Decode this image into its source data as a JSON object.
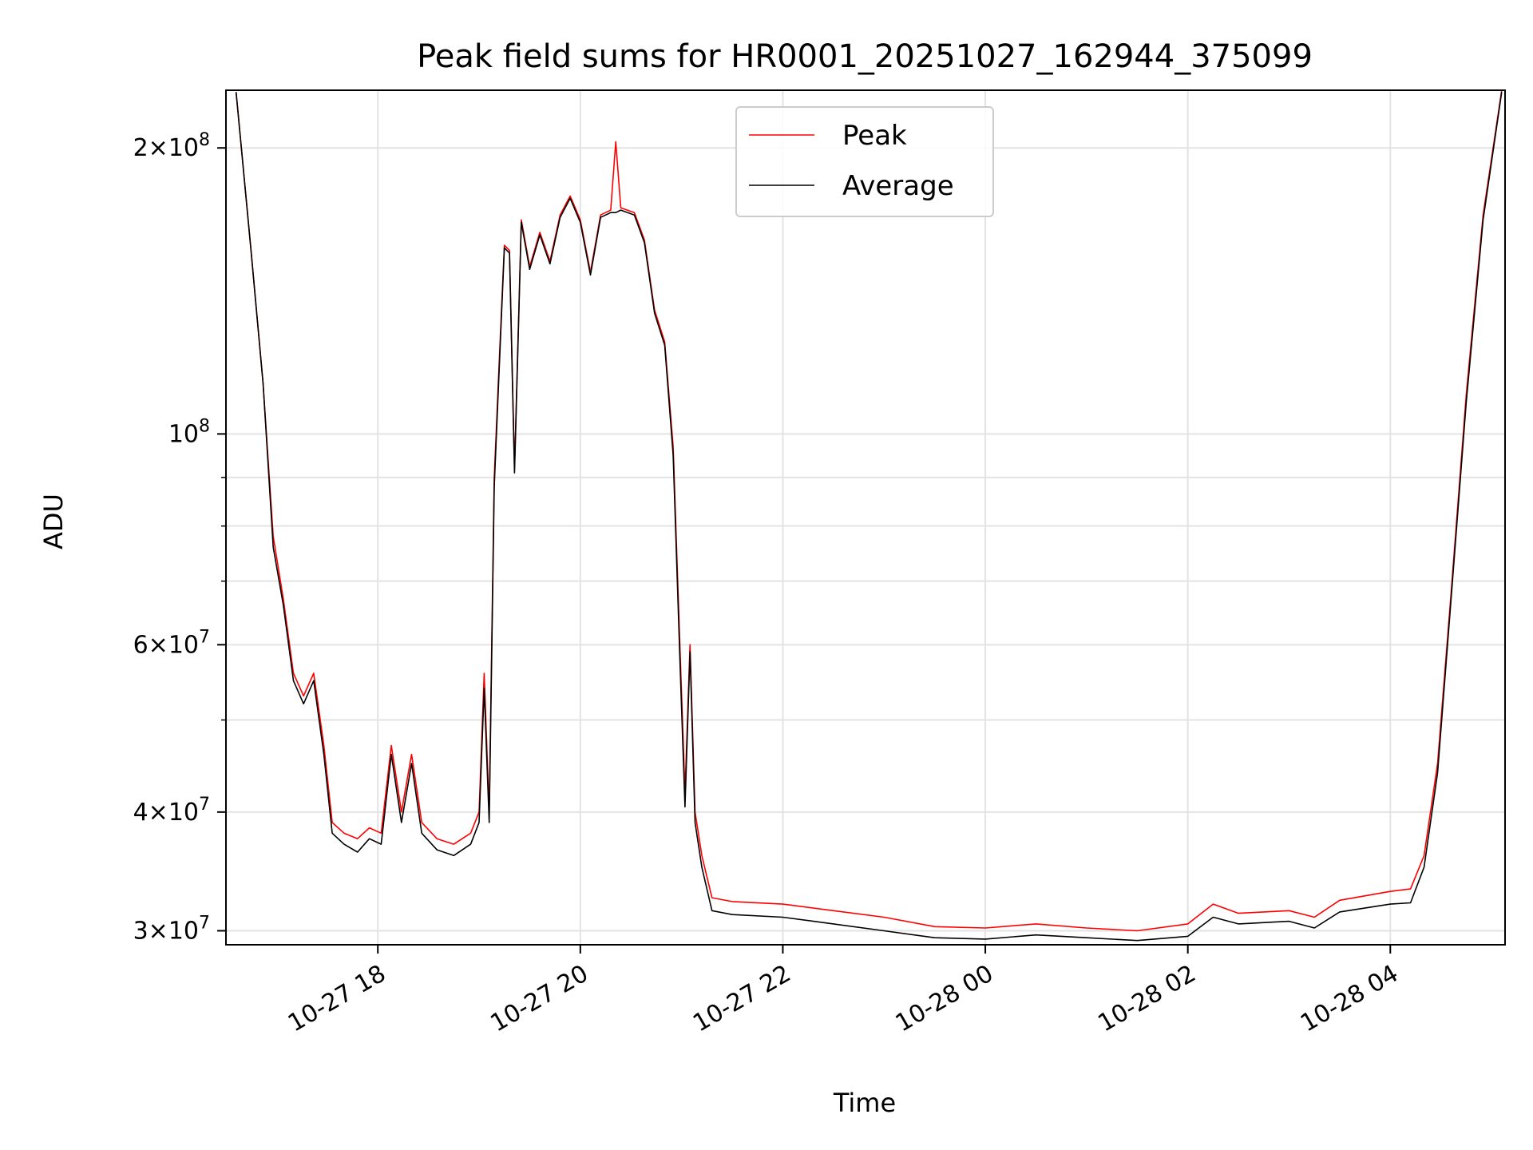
{
  "chart_data": {
    "type": "line",
    "title": "Peak field sums for HR0001_20251027_162944_375099",
    "xlabel": "Time",
    "ylabel": "ADU",
    "yscale": "log",
    "ylim": [
      29000000,
      230000000
    ],
    "xlim": [
      "2025-10-27 16:30",
      "2025-10-28 05:08"
    ],
    "x_ticks": [
      {
        "value": "2025-10-27 18:00",
        "label": "10-27 18"
      },
      {
        "value": "2025-10-27 20:00",
        "label": "10-27 20"
      },
      {
        "value": "2025-10-27 22:00",
        "label": "10-27 22"
      },
      {
        "value": "2025-10-28 00:00",
        "label": "10-28 00"
      },
      {
        "value": "2025-10-28 02:00",
        "label": "10-28 02"
      },
      {
        "value": "2025-10-28 04:00",
        "label": "10-28 04"
      }
    ],
    "y_ticks": [
      {
        "value": 30000000,
        "mantissa": "3",
        "exponent": "7"
      },
      {
        "value": 40000000,
        "mantissa": "4",
        "exponent": "7"
      },
      {
        "value": 60000000,
        "mantissa": "6",
        "exponent": "7"
      },
      {
        "value": 100000000,
        "mantissa": "",
        "exponent": "8"
      },
      {
        "value": 200000000,
        "mantissa": "2",
        "exponent": "8"
      }
    ],
    "y_minor_ticks": [
      50000000,
      70000000,
      80000000,
      90000000
    ],
    "grid": true,
    "legend_position": "top-center",
    "series": [
      {
        "name": "Peak",
        "color": "#ff0000",
        "points": [
          [
            "2025-10-27 16:36",
            229000000
          ],
          [
            "2025-10-27 16:45",
            155000000
          ],
          [
            "2025-10-27 16:52",
            113000000
          ],
          [
            "2025-10-27 16:58",
            78000000
          ],
          [
            "2025-10-27 17:04",
            67000000
          ],
          [
            "2025-10-27 17:10",
            56000000
          ],
          [
            "2025-10-27 17:16",
            53000000
          ],
          [
            "2025-10-27 17:22",
            56000000
          ],
          [
            "2025-10-27 17:28",
            47000000
          ],
          [
            "2025-10-27 17:33",
            39000000
          ],
          [
            "2025-10-27 17:40",
            38000000
          ],
          [
            "2025-10-27 17:48",
            37500000
          ],
          [
            "2025-10-27 17:55",
            38500000
          ],
          [
            "2025-10-27 18:02",
            38000000
          ],
          [
            "2025-10-27 18:08",
            47000000
          ],
          [
            "2025-10-27 18:14",
            40000000
          ],
          [
            "2025-10-27 18:20",
            46000000
          ],
          [
            "2025-10-27 18:26",
            39000000
          ],
          [
            "2025-10-27 18:35",
            37500000
          ],
          [
            "2025-10-27 18:45",
            37000000
          ],
          [
            "2025-10-27 18:55",
            38000000
          ],
          [
            "2025-10-27 19:00",
            40000000
          ],
          [
            "2025-10-27 19:03",
            56000000
          ],
          [
            "2025-10-27 19:06",
            40000000
          ],
          [
            "2025-10-27 19:09",
            90000000
          ],
          [
            "2025-10-27 19:12",
            120000000
          ],
          [
            "2025-10-27 19:15",
            158000000
          ],
          [
            "2025-10-27 19:18",
            156000000
          ],
          [
            "2025-10-27 19:21",
            92000000
          ],
          [
            "2025-10-27 19:25",
            168000000
          ],
          [
            "2025-10-27 19:30",
            150000000
          ],
          [
            "2025-10-27 19:36",
            163000000
          ],
          [
            "2025-10-27 19:42",
            152000000
          ],
          [
            "2025-10-27 19:48",
            170000000
          ],
          [
            "2025-10-27 19:54",
            178000000
          ],
          [
            "2025-10-27 20:00",
            168000000
          ],
          [
            "2025-10-27 20:06",
            148000000
          ],
          [
            "2025-10-27 20:12",
            170000000
          ],
          [
            "2025-10-27 20:18",
            172000000
          ],
          [
            "2025-10-27 20:21",
            203000000
          ],
          [
            "2025-10-27 20:24",
            173000000
          ],
          [
            "2025-10-27 20:32",
            171000000
          ],
          [
            "2025-10-27 20:38",
            160000000
          ],
          [
            "2025-10-27 20:44",
            135000000
          ],
          [
            "2025-10-27 20:50",
            125000000
          ],
          [
            "2025-10-27 20:55",
            97000000
          ],
          [
            "2025-10-27 20:59",
            60000000
          ],
          [
            "2025-10-27 21:02",
            42000000
          ],
          [
            "2025-10-27 21:05",
            60000000
          ],
          [
            "2025-10-27 21:08",
            40000000
          ],
          [
            "2025-10-27 21:12",
            36000000
          ],
          [
            "2025-10-27 21:18",
            32500000
          ],
          [
            "2025-10-27 21:30",
            32200000
          ],
          [
            "2025-10-27 22:00",
            32000000
          ],
          [
            "2025-10-27 22:30",
            31500000
          ],
          [
            "2025-10-27 23:00",
            31000000
          ],
          [
            "2025-10-27 23:30",
            30300000
          ],
          [
            "2025-10-28 00:00",
            30200000
          ],
          [
            "2025-10-28 00:30",
            30500000
          ],
          [
            "2025-10-28 01:00",
            30200000
          ],
          [
            "2025-10-28 01:30",
            30000000
          ],
          [
            "2025-10-28 02:00",
            30500000
          ],
          [
            "2025-10-28 02:15",
            32000000
          ],
          [
            "2025-10-28 02:30",
            31300000
          ],
          [
            "2025-10-28 03:00",
            31500000
          ],
          [
            "2025-10-28 03:15",
            31000000
          ],
          [
            "2025-10-28 03:30",
            32300000
          ],
          [
            "2025-10-28 04:00",
            33000000
          ],
          [
            "2025-10-28 04:12",
            33200000
          ],
          [
            "2025-10-28 04:20",
            36000000
          ],
          [
            "2025-10-28 04:28",
            45000000
          ],
          [
            "2025-10-28 04:36",
            68000000
          ],
          [
            "2025-10-28 04:45",
            110000000
          ],
          [
            "2025-10-28 04:55",
            170000000
          ],
          [
            "2025-10-28 05:06",
            230000000
          ]
        ]
      },
      {
        "name": "Average",
        "color": "#000000",
        "points": [
          [
            "2025-10-27 16:36",
            229000000
          ],
          [
            "2025-10-27 16:45",
            155000000
          ],
          [
            "2025-10-27 16:52",
            113000000
          ],
          [
            "2025-10-27 16:58",
            76000000
          ],
          [
            "2025-10-27 17:04",
            66000000
          ],
          [
            "2025-10-27 17:10",
            55000000
          ],
          [
            "2025-10-27 17:16",
            52000000
          ],
          [
            "2025-10-27 17:22",
            55000000
          ],
          [
            "2025-10-27 17:28",
            46000000
          ],
          [
            "2025-10-27 17:33",
            38000000
          ],
          [
            "2025-10-27 17:40",
            37000000
          ],
          [
            "2025-10-27 17:48",
            36300000
          ],
          [
            "2025-10-27 17:55",
            37500000
          ],
          [
            "2025-10-27 18:02",
            37000000
          ],
          [
            "2025-10-27 18:08",
            46000000
          ],
          [
            "2025-10-27 18:14",
            39000000
          ],
          [
            "2025-10-27 18:20",
            45000000
          ],
          [
            "2025-10-27 18:26",
            38000000
          ],
          [
            "2025-10-27 18:35",
            36500000
          ],
          [
            "2025-10-27 18:45",
            36000000
          ],
          [
            "2025-10-27 18:55",
            37000000
          ],
          [
            "2025-10-27 19:00",
            39000000
          ],
          [
            "2025-10-27 19:03",
            54000000
          ],
          [
            "2025-10-27 19:06",
            39000000
          ],
          [
            "2025-10-27 19:09",
            88000000
          ],
          [
            "2025-10-27 19:12",
            118000000
          ],
          [
            "2025-10-27 19:15",
            157000000
          ],
          [
            "2025-10-27 19:18",
            155000000
          ],
          [
            "2025-10-27 19:21",
            91000000
          ],
          [
            "2025-10-27 19:25",
            167000000
          ],
          [
            "2025-10-27 19:30",
            149000000
          ],
          [
            "2025-10-27 19:36",
            162000000
          ],
          [
            "2025-10-27 19:42",
            151000000
          ],
          [
            "2025-10-27 19:48",
            169000000
          ],
          [
            "2025-10-27 19:54",
            177000000
          ],
          [
            "2025-10-27 20:00",
            167000000
          ],
          [
            "2025-10-27 20:06",
            147000000
          ],
          [
            "2025-10-27 20:12",
            169000000
          ],
          [
            "2025-10-27 20:18",
            171000000
          ],
          [
            "2025-10-27 20:21",
            171000000
          ],
          [
            "2025-10-27 20:24",
            172000000
          ],
          [
            "2025-10-27 20:32",
            170000000
          ],
          [
            "2025-10-27 20:38",
            159000000
          ],
          [
            "2025-10-27 20:44",
            134000000
          ],
          [
            "2025-10-27 20:50",
            124000000
          ],
          [
            "2025-10-27 20:55",
            95000000
          ],
          [
            "2025-10-27 20:59",
            58000000
          ],
          [
            "2025-10-27 21:02",
            40500000
          ],
          [
            "2025-10-27 21:05",
            59000000
          ],
          [
            "2025-10-27 21:08",
            39000000
          ],
          [
            "2025-10-27 21:12",
            35000000
          ],
          [
            "2025-10-27 21:18",
            31500000
          ],
          [
            "2025-10-27 21:30",
            31200000
          ],
          [
            "2025-10-27 22:00",
            31000000
          ],
          [
            "2025-10-27 22:30",
            30500000
          ],
          [
            "2025-10-27 23:00",
            30000000
          ],
          [
            "2025-10-27 23:30",
            29500000
          ],
          [
            "2025-10-28 00:00",
            29400000
          ],
          [
            "2025-10-28 00:30",
            29700000
          ],
          [
            "2025-10-28 01:00",
            29500000
          ],
          [
            "2025-10-28 01:30",
            29300000
          ],
          [
            "2025-10-28 02:00",
            29600000
          ],
          [
            "2025-10-28 02:15",
            31000000
          ],
          [
            "2025-10-28 02:30",
            30500000
          ],
          [
            "2025-10-28 03:00",
            30700000
          ],
          [
            "2025-10-28 03:15",
            30200000
          ],
          [
            "2025-10-28 03:30",
            31400000
          ],
          [
            "2025-10-28 04:00",
            32000000
          ],
          [
            "2025-10-28 04:12",
            32100000
          ],
          [
            "2025-10-28 04:20",
            35000000
          ],
          [
            "2025-10-28 04:28",
            44000000
          ],
          [
            "2025-10-28 04:36",
            67000000
          ],
          [
            "2025-10-28 04:45",
            108000000
          ],
          [
            "2025-10-28 04:55",
            168000000
          ],
          [
            "2025-10-28 05:06",
            229000000
          ]
        ]
      }
    ]
  }
}
